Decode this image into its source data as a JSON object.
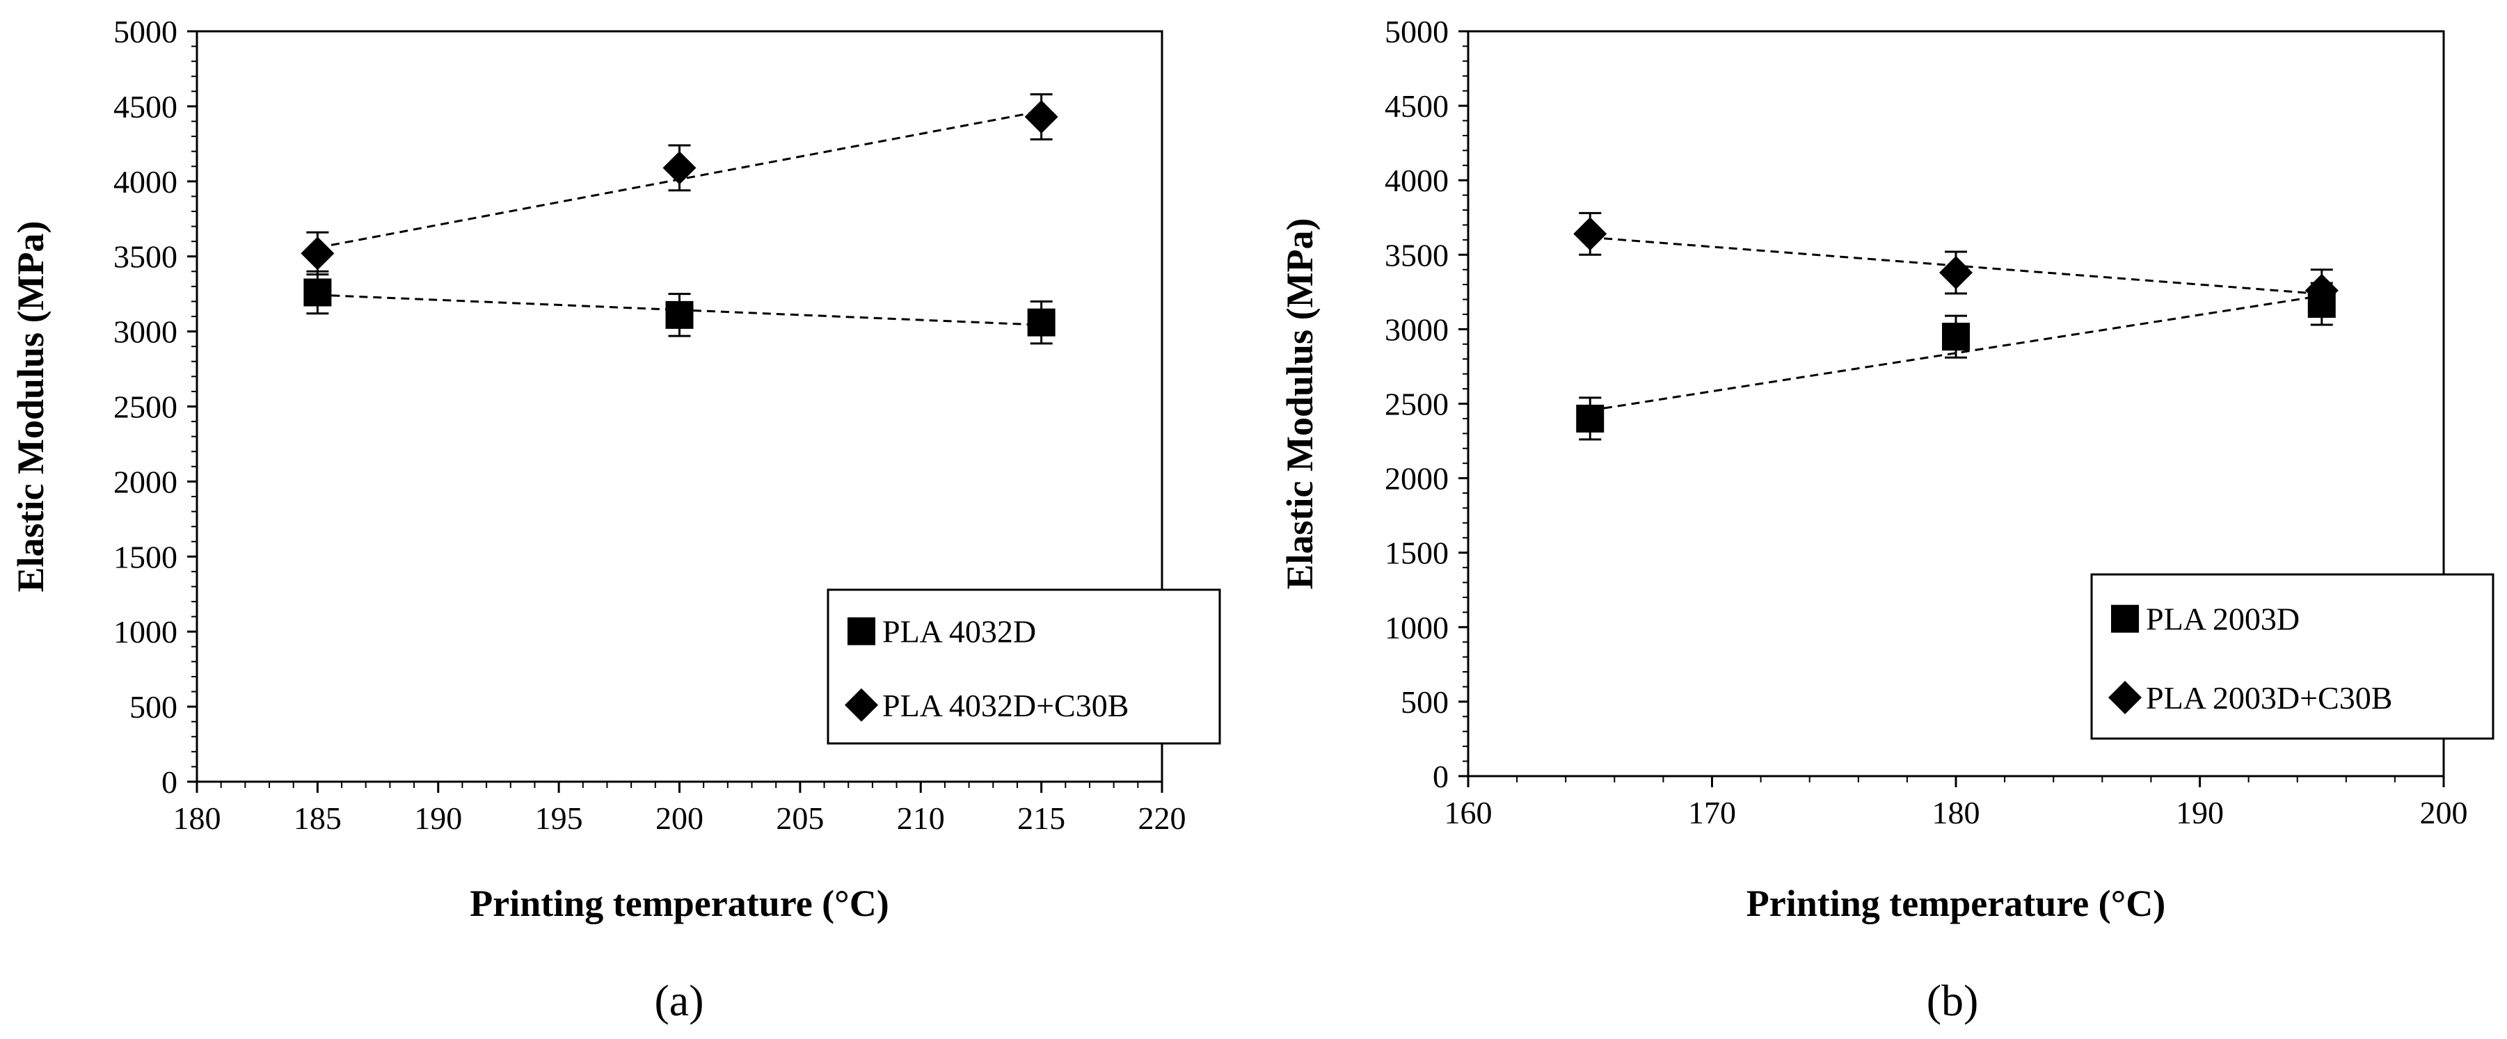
{
  "chart_data": [
    {
      "type": "scatter",
      "panel_label": "(a)",
      "xlabel": "Printing temperature (°C)",
      "ylabel": "Elastic Modulus (MPa)",
      "xlim": [
        180,
        220
      ],
      "ylim": [
        0,
        5000
      ],
      "x_ticks": [
        180,
        185,
        190,
        195,
        200,
        205,
        210,
        215,
        220
      ],
      "y_ticks": [
        0,
        500,
        1000,
        1500,
        2000,
        2500,
        3000,
        3500,
        4000,
        4500,
        5000
      ],
      "legend_position": "bottom-right",
      "series": [
        {
          "name": "PLA 4032D",
          "marker": "square",
          "x": [
            185,
            200,
            215
          ],
          "values": [
            3260,
            3110,
            3060
          ],
          "errors": [
            140,
            140,
            140
          ],
          "trendline": "dashed"
        },
        {
          "name": "PLA 4032D+C30B",
          "marker": "diamond",
          "x": [
            185,
            200,
            215
          ],
          "values": [
            3520,
            4090,
            4430
          ],
          "errors": [
            140,
            150,
            150
          ],
          "trendline": "dashed"
        }
      ]
    },
    {
      "type": "scatter",
      "panel_label": "(b)",
      "xlabel": "Printing temperature (°C)",
      "ylabel": "Elastic Modulus (MPa)",
      "xlim": [
        160,
        200
      ],
      "ylim": [
        0,
        5000
      ],
      "x_ticks": [
        160,
        170,
        180,
        190,
        200
      ],
      "y_ticks": [
        0,
        500,
        1000,
        1500,
        2000,
        2500,
        3000,
        3500,
        4000,
        4500,
        5000
      ],
      "legend_position": "bottom-right",
      "series": [
        {
          "name": "PLA 2003D",
          "marker": "square",
          "x": [
            165,
            180,
            195
          ],
          "values": [
            2400,
            2950,
            3170
          ],
          "errors": [
            140,
            140,
            140
          ],
          "trendline": "dashed"
        },
        {
          "name": "PLA 2003D+C30B",
          "marker": "diamond",
          "x": [
            165,
            180,
            195
          ],
          "values": [
            3640,
            3380,
            3260
          ],
          "errors": [
            140,
            140,
            140
          ],
          "trendline": "dashed"
        }
      ]
    }
  ]
}
